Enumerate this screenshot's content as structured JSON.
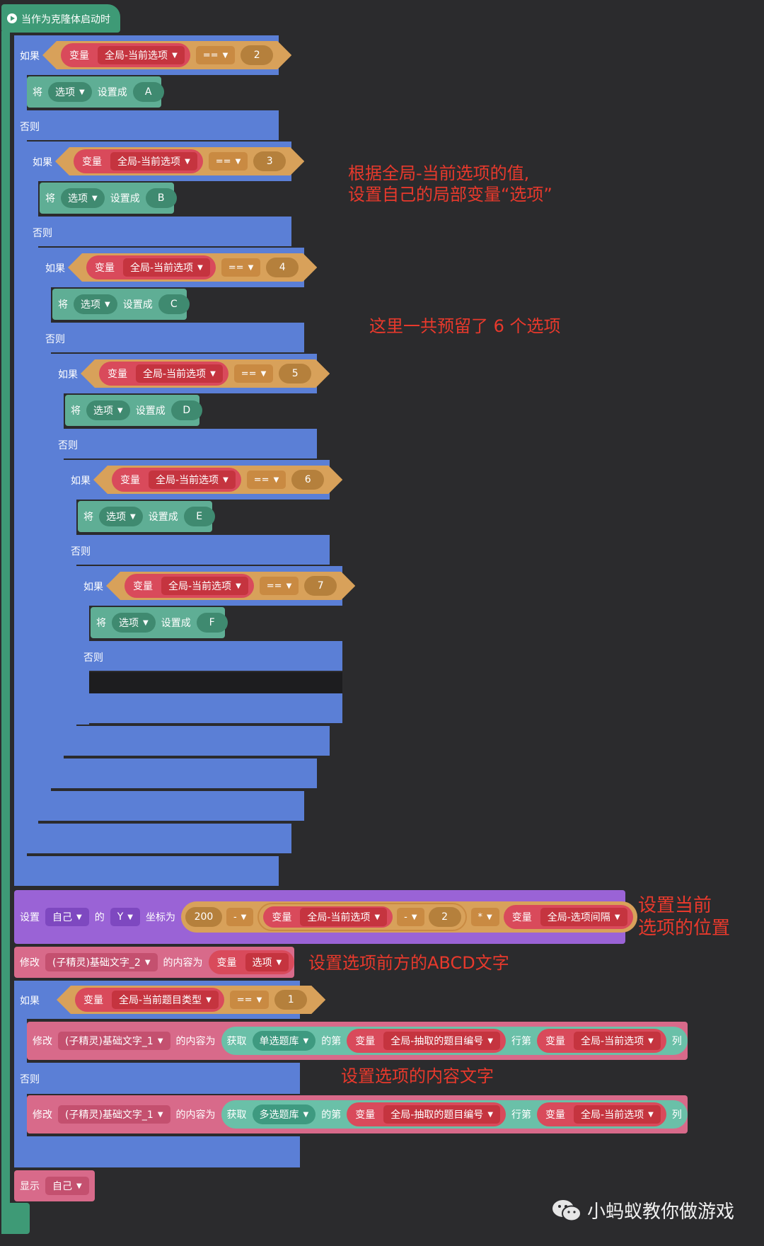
{
  "hat": {
    "label": "当作为克隆体启动时"
  },
  "words": {
    "if": "如果",
    "else": "否则",
    "set_to_prefix": "将",
    "set_to_suffix": "设置成",
    "variable": "变量",
    "of": "的",
    "row": "行第",
    "col": "列"
  },
  "chain": [
    {
      "var": "全局-当前选项",
      "op": "==",
      "value": "2",
      "set_var": "选项",
      "set_value": "A"
    },
    {
      "var": "全局-当前选项",
      "op": "==",
      "value": "3",
      "set_var": "选项",
      "set_value": "B"
    },
    {
      "var": "全局-当前选项",
      "op": "==",
      "value": "4",
      "set_var": "选项",
      "set_value": "C"
    },
    {
      "var": "全局-当前选项",
      "op": "==",
      "value": "5",
      "set_var": "选项",
      "set_value": "D"
    },
    {
      "var": "全局-当前选项",
      "op": "==",
      "value": "6",
      "set_var": "选项",
      "set_value": "E"
    },
    {
      "var": "全局-当前选项",
      "op": "==",
      "value": "7",
      "set_var": "选项",
      "set_value": "F"
    }
  ],
  "set_pos": {
    "set": "设置",
    "target": "自己",
    "of": "的",
    "axis": "Y",
    "coord": "坐标为",
    "base": "200",
    "op1": "-",
    "var1": "全局-当前选项",
    "op2": "-",
    "num": "2",
    "op3": "*",
    "var2": "全局-选项间隔"
  },
  "modify_abcd": {
    "modify": "修改",
    "sprite": "(子精灵)基础文字_2",
    "content": "的内容为",
    "var": "选项"
  },
  "if_type": {
    "var": "全局-当前题目类型",
    "op": "==",
    "value": "1"
  },
  "modify_single": {
    "modify": "修改",
    "sprite": "(子精灵)基础文字_1",
    "content": "的内容为",
    "get": "获取",
    "bank": "单选题库",
    "of": "的第",
    "var1": "全局-抽取的题目编号",
    "row": "行第",
    "var2": "全局-当前选项",
    "col": "列"
  },
  "modify_multi": {
    "modify": "修改",
    "sprite": "(子精灵)基础文字_1",
    "content": "的内容为",
    "get": "获取",
    "bank": "多选题库",
    "of": "的第",
    "var1": "全局-抽取的题目编号",
    "row": "行第",
    "var2": "全局-当前选项",
    "col": "列"
  },
  "show": {
    "label": "显示",
    "target": "自己"
  },
  "annotations": {
    "a1_line1": "根据全局-当前选项的值,",
    "a1_line2": "设置自己的局部变量“选项”",
    "a2": "这里一共预留了 6 个选项",
    "a3_line1": "设置当前",
    "a3_line2": "选项的位置",
    "a4": "设置选项前方的ABCD文字",
    "a5": "设置选项的内容文字"
  },
  "watermark": "小蚂蚁教你做游戏",
  "icons": {
    "hat": "play-circle-icon",
    "dropdown": "triangle-down-icon",
    "watermark": "wechat-icon"
  },
  "colors": {
    "control": "#5b7fd6",
    "event": "#3e9a76",
    "variable": "#d94a5b",
    "operator": "#d8a15a",
    "motion": "#9a63d6",
    "looks": "#d86a8a",
    "annotation": "#e8392c"
  }
}
